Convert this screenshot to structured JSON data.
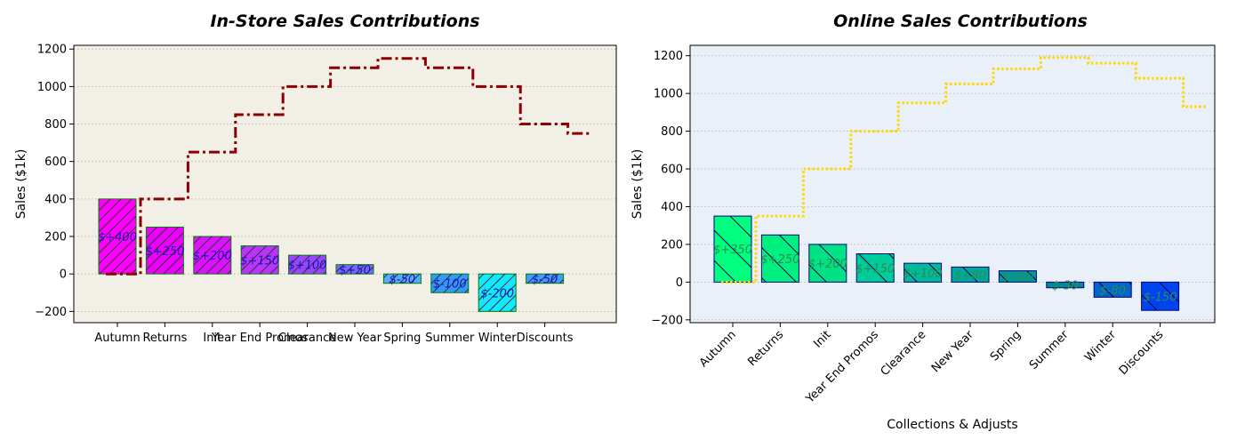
{
  "chart_data": [
    {
      "type": "bar",
      "variant": "waterfall",
      "title": "In-Store Sales Contributions",
      "xlabel": "",
      "ylabel": "Sales ($1k)",
      "ylim": [
        -260,
        1220
      ],
      "yticks": [
        -200,
        0,
        200,
        400,
        600,
        800,
        1000,
        1200
      ],
      "grid": "horizontal-dotted",
      "background": "#f2efe6",
      "categories": [
        "Autumn",
        "Returns",
        "Init",
        "Year End Promos",
        "Clearance",
        "New Year",
        "Spring",
        "Summer",
        "Winter",
        "Discounts"
      ],
      "values": [
        400,
        250,
        200,
        150,
        100,
        50,
        -50,
        -100,
        -200,
        -50
      ],
      "data_labels": [
        "$+400",
        "$+250",
        "$+200",
        "$+150",
        "$+100",
        "$+50",
        "$-50",
        "$-100",
        "$-200",
        "$-50"
      ],
      "bar_colors": [
        "#ff00ff",
        "#ee00ff",
        "#dd11ff",
        "#bb33ff",
        "#9944ff",
        "#7766ff",
        "#55aaff",
        "#3399ff",
        "#11e9ff",
        "#4499ff"
      ],
      "bar_edge": "#008000",
      "label_color": "#1a1aaa",
      "cumulative": [
        400,
        650,
        850,
        1000,
        1100,
        1150,
        1100,
        1000,
        800,
        750
      ],
      "cumulative_color": "#8b0000",
      "cumulative_style": "dash-dot"
    },
    {
      "type": "bar",
      "variant": "waterfall",
      "title": "Online Sales Contributions",
      "xlabel": "Collections & Adjusts",
      "ylabel": "Sales ($1k)",
      "ylim": [
        -215,
        1255
      ],
      "yticks": [
        -200,
        0,
        200,
        400,
        600,
        800,
        1000,
        1200
      ],
      "grid": "horizontal-dotted",
      "background": "#eaf0f7",
      "categories": [
        "Autumn",
        "Returns",
        "Init",
        "Year End Promos",
        "Clearance",
        "New Year",
        "Spring",
        "Summer",
        "Winter",
        "Discounts"
      ],
      "values": [
        350,
        250,
        200,
        150,
        100,
        80,
        60,
        -30,
        -80,
        -150
      ],
      "data_labels": [
        "$+350",
        "$+250",
        "$+200",
        "$+150",
        "$+100",
        "$+80",
        "$+60",
        "$-30",
        "$-80",
        "$-150"
      ],
      "bar_colors": [
        "#00ff7f",
        "#00f080",
        "#00e284",
        "#00cc99",
        "#00bb99",
        "#00aa99",
        "#009999",
        "#008899",
        "#0066cc",
        "#0044ee"
      ],
      "bar_edge": "#000080",
      "label_color": "#2e8b57",
      "cumulative": [
        350,
        600,
        800,
        950,
        1050,
        1130,
        1190,
        1160,
        1080,
        930
      ],
      "cumulative_color": "#ffd700",
      "cumulative_style": "dotted"
    }
  ]
}
